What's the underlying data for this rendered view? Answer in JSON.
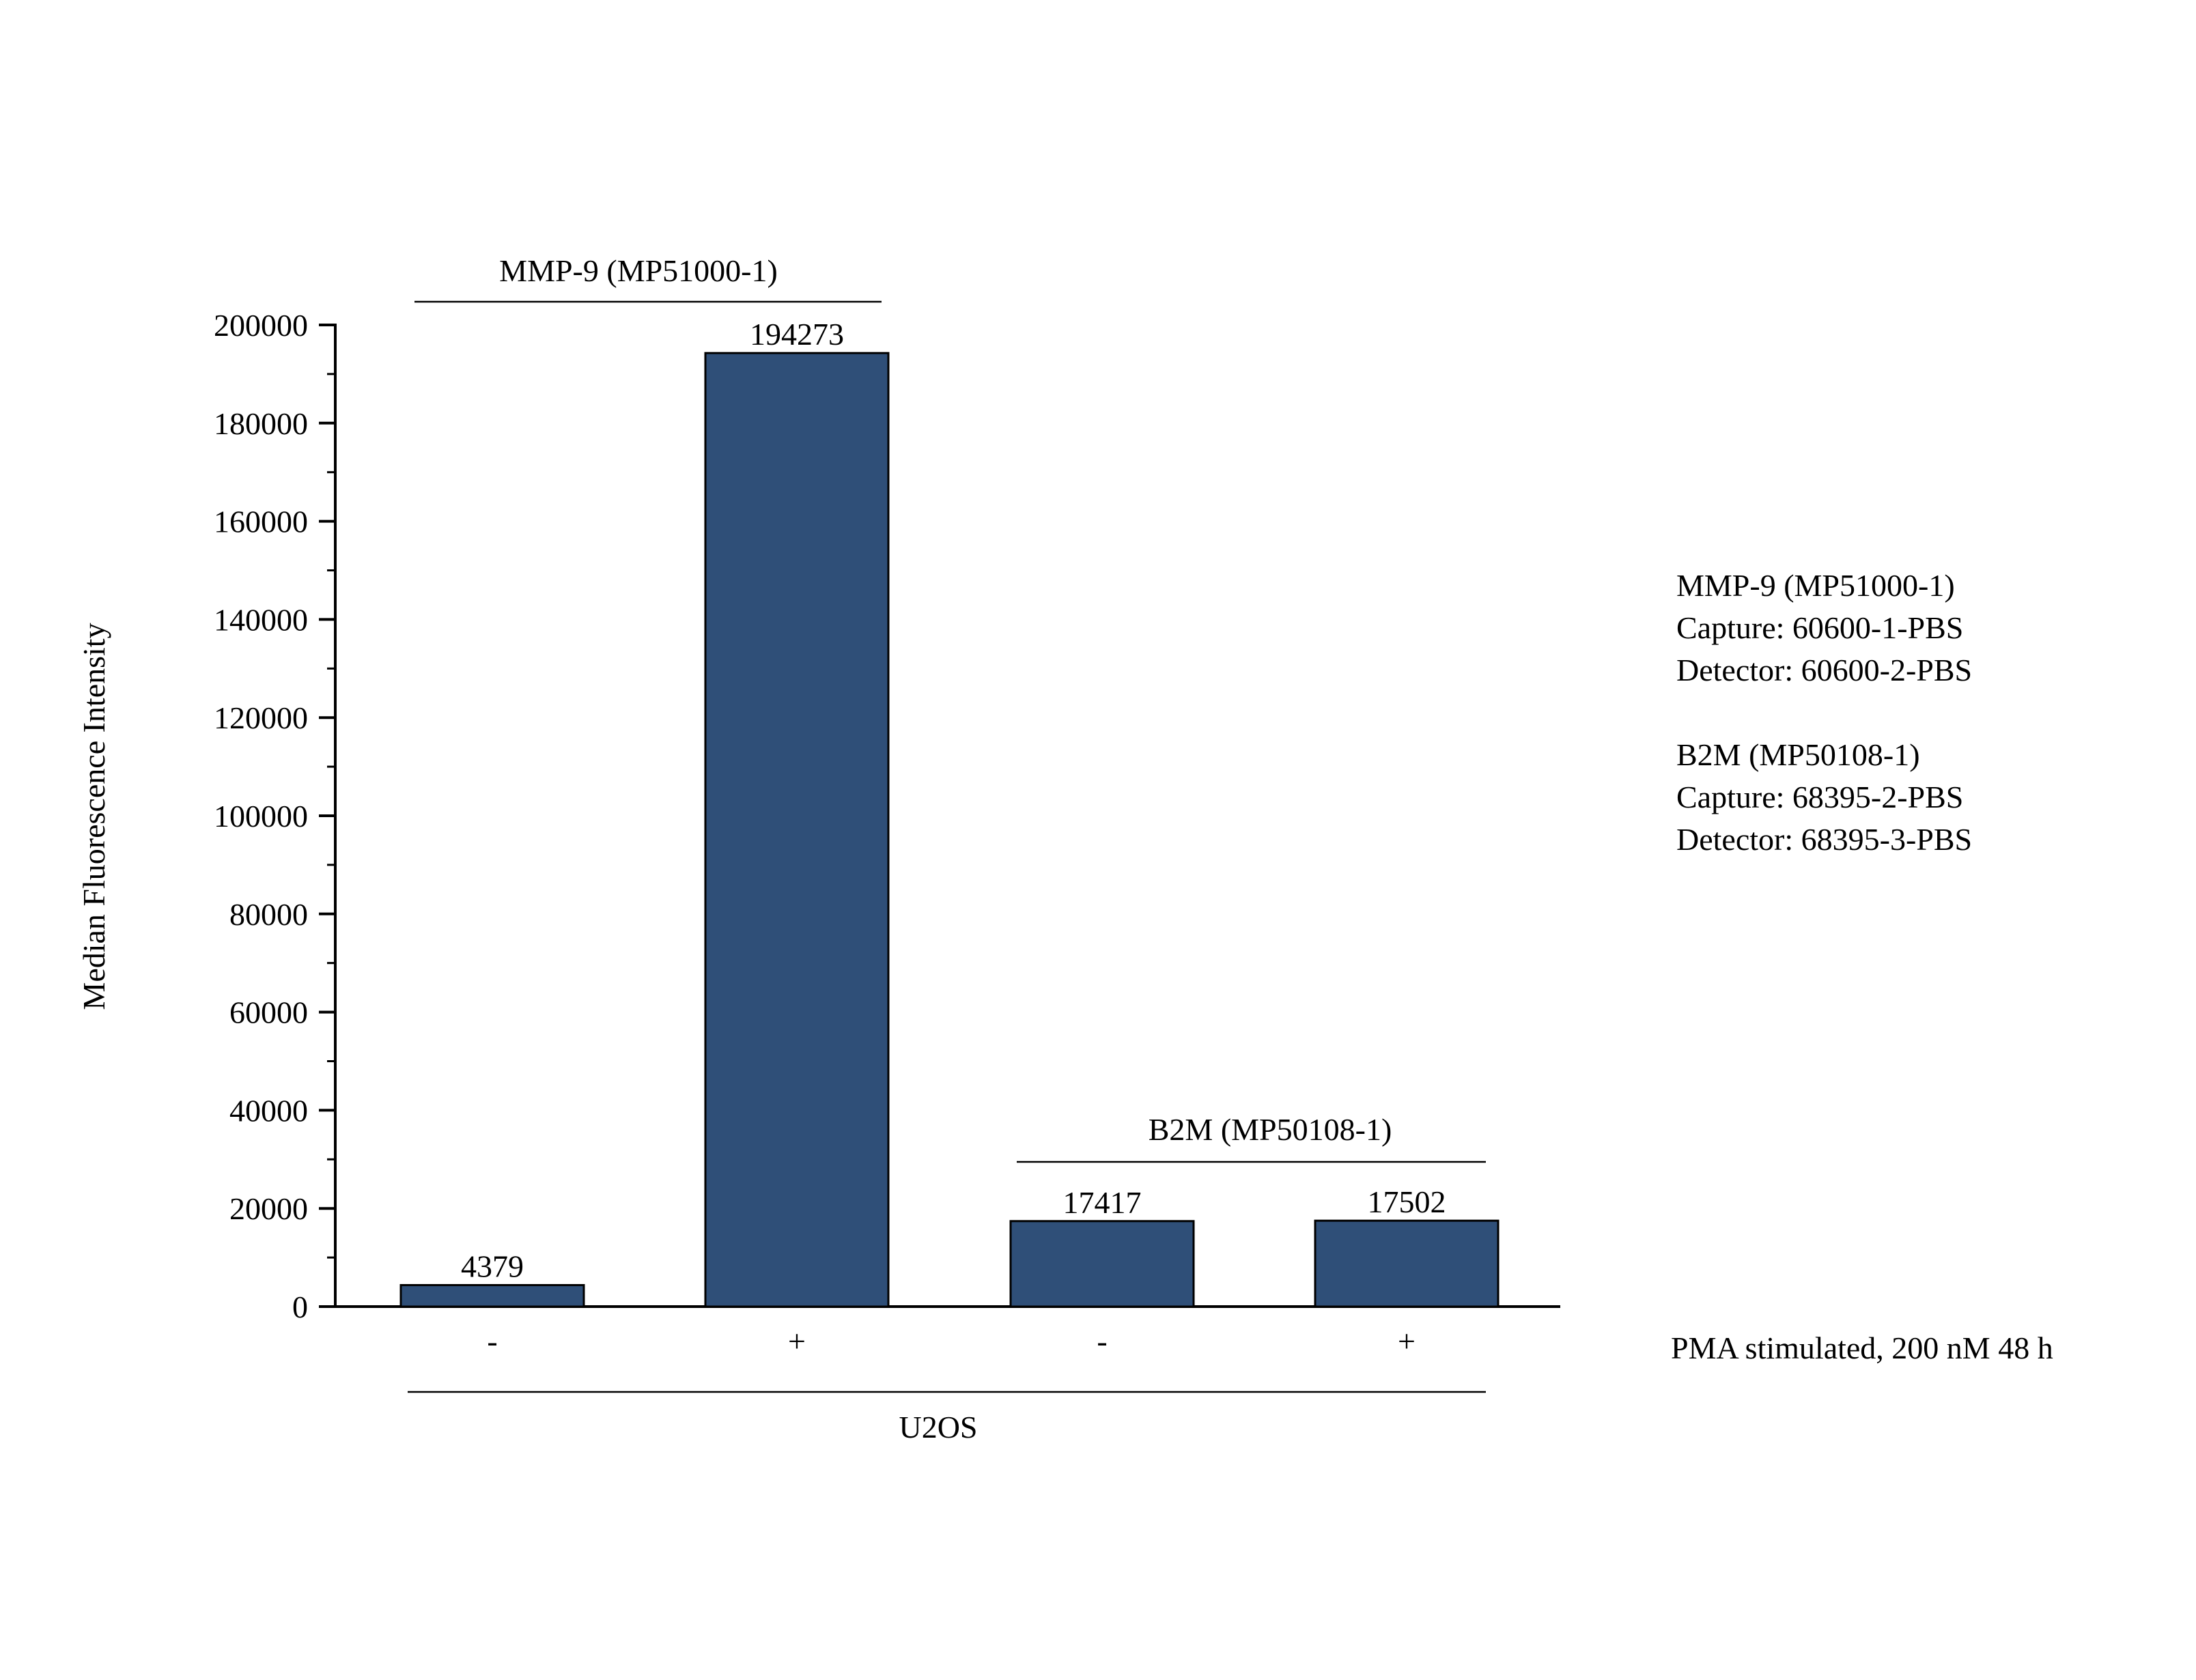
{
  "chart_data": {
    "type": "bar",
    "ylabel": "Median Fluorescence Intensity",
    "ylim": [
      0,
      200000
    ],
    "y_ticks": [
      "0",
      "20000",
      "40000",
      "60000",
      "80000",
      "100000",
      "120000",
      "140000",
      "160000",
      "180000",
      "200000"
    ],
    "y_tick_values": [
      0,
      20000,
      40000,
      60000,
      80000,
      100000,
      120000,
      140000,
      160000,
      180000,
      200000
    ],
    "categories": [
      "-",
      "+",
      "-",
      "+"
    ],
    "values": [
      4379,
      194273,
      17417,
      17502
    ],
    "value_labels": [
      "4379",
      "194273",
      "17417",
      "17502"
    ],
    "bar_color": "#2f4f78",
    "group_labels": {
      "mmp9": "MMP-9 (MP51000-1)",
      "b2m": "B2M (MP50108-1)",
      "cell_line": "U2OS"
    },
    "row_label": "PMA stimulated, 200 nM 48 h",
    "legend_lines": [
      "MMP-9 (MP51000-1)",
      "Capture: 60600-1-PBS",
      "Detector: 60600-2-PBS",
      "",
      "B2M (MP50108-1)",
      "Capture: 68395-2-PBS",
      "Detector: 68395-3-PBS"
    ],
    "grid": false
  }
}
